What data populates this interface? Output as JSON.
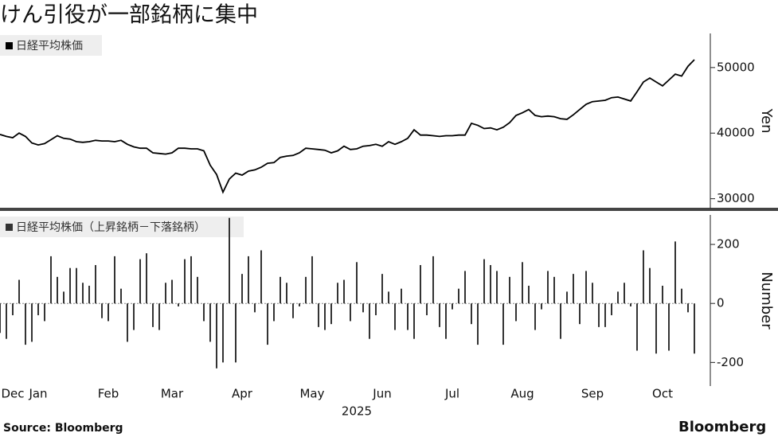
{
  "title": "けん引役が一部銘柄に集中",
  "source": "Source:  Bloomberg",
  "logo": "Bloomberg",
  "chart_data": [
    {
      "type": "line",
      "y_label": "Yen",
      "categories": [
        null,
        null,
        null,
        null,
        null,
        null,
        null,
        null,
        null,
        null,
        null,
        null,
        null,
        null,
        null,
        null,
        null,
        null,
        null,
        null,
        null,
        null,
        null,
        null,
        null,
        null,
        null,
        null,
        null,
        null,
        null,
        null,
        null,
        null,
        null,
        null,
        null,
        null,
        null,
        null,
        null,
        null,
        null,
        null,
        null,
        null,
        null,
        null,
        null,
        null,
        null,
        null,
        null,
        null,
        null,
        null,
        null,
        null,
        null,
        null,
        null,
        null,
        null,
        null,
        null,
        null,
        null,
        null,
        null,
        null,
        null,
        null,
        null,
        null,
        null,
        null,
        null,
        null,
        null,
        null,
        null,
        null,
        null,
        null,
        null,
        null,
        null,
        null,
        null,
        null,
        null,
        null,
        null,
        null,
        null,
        null,
        null,
        null,
        null,
        null,
        null,
        null,
        null,
        null,
        null,
        null,
        null,
        null,
        null,
        null
      ],
      "series": [
        {
          "name": "日経平均株価",
          "color": "#000000",
          "values": [
            39800,
            39500,
            39300,
            40000,
            39500,
            38500,
            38200,
            38400,
            39000,
            39600,
            39200,
            39100,
            38700,
            38600,
            38700,
            38900,
            38800,
            38800,
            38700,
            38900,
            38300,
            37900,
            37700,
            37700,
            37000,
            36900,
            36800,
            37000,
            37700,
            37700,
            37600,
            37600,
            37300,
            35100,
            33700,
            31000,
            33000,
            33900,
            33600,
            34200,
            34400,
            34800,
            35400,
            35500,
            36300,
            36500,
            36600,
            37000,
            37700,
            37600,
            37500,
            37400,
            37000,
            37300,
            38000,
            37500,
            37600,
            38000,
            38100,
            38300,
            38000,
            38700,
            38300,
            38700,
            39200,
            40500,
            39700,
            39700,
            39600,
            39500,
            39600,
            39600,
            39700,
            39700,
            41500,
            41200,
            40700,
            40800,
            40500,
            40900,
            41600,
            42700,
            43100,
            43600,
            42700,
            42500,
            42600,
            42500,
            42200,
            42100,
            42800,
            43600,
            44400,
            44800,
            44900,
            45000,
            45400,
            45500,
            45200,
            44900,
            46300,
            47800,
            48400,
            47800,
            47200,
            48100,
            49000,
            48700,
            50200,
            51200
          ]
        }
      ],
      "ylim": [
        28500,
        55200
      ],
      "yticks": [
        30000,
        40000,
        50000
      ]
    },
    {
      "type": "bar",
      "y_label": "Number",
      "x_label": "2025",
      "categories": [
        null,
        null,
        "Dec",
        null,
        null,
        null,
        "Jan",
        null,
        null,
        null,
        null,
        null,
        null,
        null,
        null,
        null,
        null,
        "Feb",
        null,
        null,
        null,
        null,
        null,
        null,
        null,
        null,
        null,
        "Mar",
        null,
        null,
        null,
        null,
        null,
        null,
        null,
        null,
        null,
        null,
        "Apr",
        null,
        null,
        null,
        null,
        null,
        null,
        null,
        null,
        null,
        null,
        "May",
        null,
        null,
        null,
        null,
        null,
        null,
        null,
        null,
        null,
        null,
        "Jun",
        null,
        null,
        null,
        null,
        null,
        null,
        null,
        null,
        null,
        null,
        "Jul",
        null,
        null,
        null,
        null,
        null,
        null,
        null,
        null,
        null,
        null,
        "Aug",
        null,
        null,
        null,
        null,
        null,
        null,
        null,
        null,
        null,
        null,
        "Sep",
        null,
        null,
        null,
        null,
        null,
        null,
        null,
        null,
        null,
        null,
        "Oct",
        null,
        null,
        null,
        null,
        null
      ],
      "series": [
        {
          "name": "日経平均株価（上昇銘柄－下落銘柄）",
          "color": "#333333",
          "values": [
            -100,
            -120,
            -40,
            80,
            -140,
            -130,
            -40,
            -60,
            160,
            90,
            40,
            120,
            120,
            70,
            60,
            130,
            -50,
            -60,
            160,
            50,
            -130,
            -90,
            150,
            170,
            -80,
            -90,
            70,
            80,
            -10,
            150,
            160,
            90,
            -60,
            -130,
            -220,
            -200,
            290,
            -200,
            100,
            160,
            -30,
            180,
            -140,
            -60,
            90,
            70,
            -50,
            -10,
            90,
            160,
            -80,
            -90,
            -70,
            70,
            80,
            -60,
            140,
            -30,
            -120,
            -40,
            100,
            40,
            -90,
            50,
            -90,
            -120,
            130,
            -40,
            160,
            -80,
            -120,
            -20,
            50,
            110,
            -70,
            -140,
            150,
            130,
            110,
            -140,
            90,
            -60,
            140,
            60,
            -90,
            -20,
            110,
            90,
            -120,
            40,
            100,
            -70,
            110,
            70,
            -80,
            -80,
            -40,
            40,
            70,
            -10,
            -160,
            180,
            120,
            -170,
            60,
            -160,
            210,
            50,
            -30,
            -170
          ]
        }
      ],
      "ylim": [
        -280,
        300
      ],
      "yticks": [
        -200,
        0,
        200
      ]
    }
  ]
}
